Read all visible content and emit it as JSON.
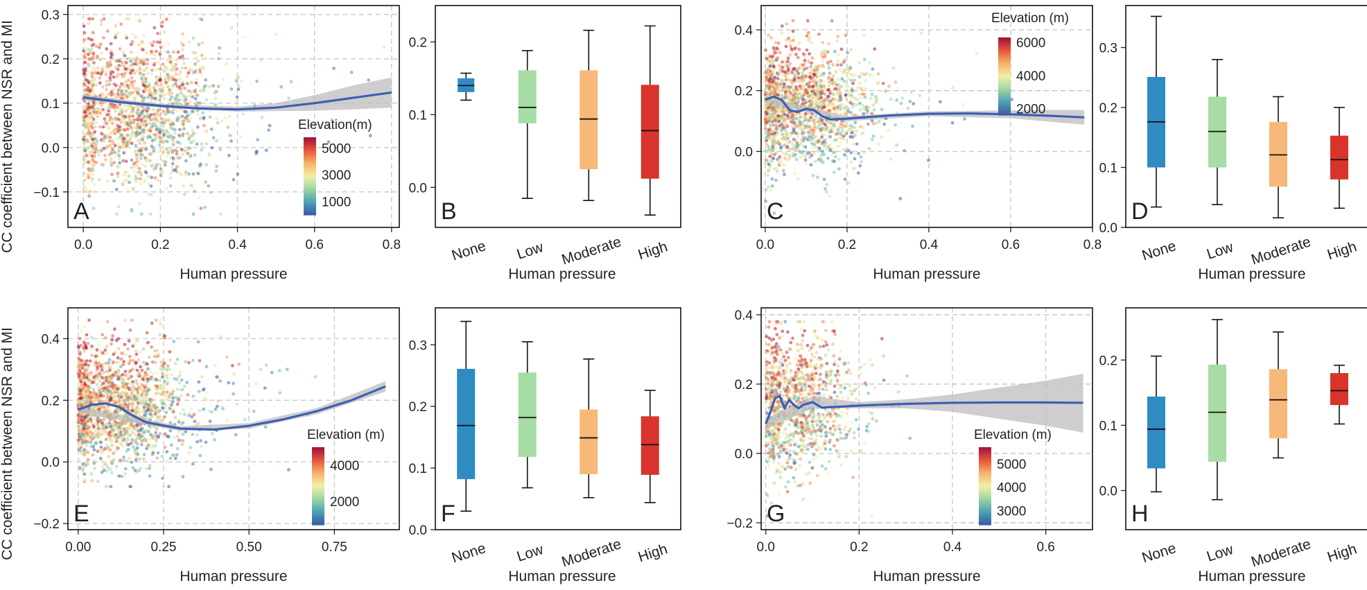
{
  "figure": {
    "ylabel_top": "CC coefficient between NSR and MI",
    "ylabel_bottom": "CC coefficient between NSR and MI"
  },
  "palette": {
    "elevation_ramp": [
      "#3b5ea8",
      "#4fa4b6",
      "#9fd6a2",
      "#f2f0a8",
      "#f6b46a",
      "#e9583a",
      "#a3153f"
    ],
    "smooth_line": "#3c5fb3",
    "ci_band": "#bdbdbd",
    "grid": "#c8c8c8",
    "box_colors": {
      "None": "#2f8cc2",
      "Low": "#a7dca5",
      "Moderate": "#f7b97a",
      "High": "#d8342b"
    }
  },
  "chart_data": [
    {
      "panel": "A",
      "type": "scatter",
      "xlabel": "Human pressure",
      "ylabel": "",
      "xlim": [
        -0.04,
        0.82
      ],
      "ylim": [
        -0.18,
        0.32
      ],
      "xticks": [
        0.0,
        0.2,
        0.4,
        0.6,
        0.8
      ],
      "yticks": [
        -0.1,
        0.0,
        0.1,
        0.2,
        0.3
      ],
      "xtick_labels": [
        "0.0",
        "0.2",
        "0.4",
        "0.6",
        "0.8"
      ],
      "ytick_labels": [
        "−0.1",
        "0.0",
        "0.1",
        "0.2",
        "0.3"
      ],
      "grid": true,
      "smooth": {
        "x": [
          0.0,
          0.1,
          0.2,
          0.3,
          0.4,
          0.5,
          0.6,
          0.7,
          0.8
        ],
        "y": [
          0.113,
          0.102,
          0.094,
          0.088,
          0.086,
          0.09,
          0.1,
          0.112,
          0.124
        ]
      },
      "ci": {
        "x": [
          0.0,
          0.2,
          0.4,
          0.5,
          0.6,
          0.7,
          0.8
        ],
        "lower": [
          0.107,
          0.09,
          0.081,
          0.082,
          0.083,
          0.086,
          0.09
        ],
        "upper": [
          0.119,
          0.098,
          0.092,
          0.1,
          0.118,
          0.14,
          0.158
        ]
      },
      "points": {
        "n": 1600,
        "x_center": 0.16,
        "x_spread": 0.09,
        "y_center": 0.08,
        "y_spread": 0.085,
        "y_min": -0.15,
        "y_max": 0.29,
        "x_max": 0.78
      },
      "colorbar": {
        "title": "Elevation(m)",
        "tick_labels": [
          "5000",
          "3000",
          "1000"
        ],
        "range": [
          0,
          5800
        ],
        "tick_values": [
          5000,
          3000,
          1000
        ]
      }
    },
    {
      "panel": "B",
      "type": "box",
      "xlabel": "Human pressure",
      "ylabel": "",
      "ylim": [
        -0.055,
        0.25
      ],
      "yticks": [
        0.0,
        0.1,
        0.2
      ],
      "ytick_labels": [
        "0.0",
        "0.1",
        "0.2"
      ],
      "categories": [
        "None",
        "Low",
        "Moderate",
        "High"
      ],
      "boxes": [
        {
          "min": 0.12,
          "q1": 0.131,
          "median": 0.14,
          "q3": 0.15,
          "max": 0.157
        },
        {
          "min": -0.015,
          "q1": 0.088,
          "median": 0.11,
          "q3": 0.161,
          "max": 0.188
        },
        {
          "min": -0.018,
          "q1": 0.025,
          "median": 0.094,
          "q3": 0.161,
          "max": 0.216
        },
        {
          "min": -0.038,
          "q1": 0.012,
          "median": 0.078,
          "q3": 0.141,
          "max": 0.222
        }
      ]
    },
    {
      "panel": "C",
      "type": "scatter",
      "xlabel": "Human pressure",
      "ylabel": "",
      "xlim": [
        -0.01,
        0.8
      ],
      "ylim": [
        -0.25,
        0.48
      ],
      "xticks": [
        0.0,
        0.2,
        0.4,
        0.6,
        0.8
      ],
      "yticks": [
        0.0,
        0.2,
        0.4
      ],
      "xtick_labels": [
        "0.0",
        "0.2",
        "0.4",
        "0.6",
        "0.8"
      ],
      "ytick_labels": [
        "0.0",
        "0.2",
        "0.4"
      ],
      "grid": true,
      "smooth": {
        "x": [
          0.0,
          0.02,
          0.04,
          0.06,
          0.08,
          0.1,
          0.12,
          0.14,
          0.16,
          0.2,
          0.3,
          0.4,
          0.5,
          0.6,
          0.7,
          0.78
        ],
        "y": [
          0.17,
          0.18,
          0.17,
          0.135,
          0.13,
          0.14,
          0.135,
          0.115,
          0.105,
          0.108,
          0.118,
          0.124,
          0.125,
          0.122,
          0.117,
          0.112
        ]
      },
      "ci": {
        "x": [
          0.0,
          0.2,
          0.4,
          0.6,
          0.7,
          0.78
        ],
        "lower": [
          0.16,
          0.1,
          0.116,
          0.109,
          0.097,
          0.088
        ],
        "upper": [
          0.18,
          0.116,
          0.132,
          0.135,
          0.137,
          0.136
        ]
      },
      "points": {
        "n": 1600,
        "x_center": 0.1,
        "x_spread": 0.08,
        "y_center": 0.15,
        "y_spread": 0.1,
        "y_min": -0.22,
        "y_max": 0.43,
        "x_max": 0.7
      },
      "colorbar": {
        "title": "Elevation (m)",
        "tick_labels": [
          "6000",
          "4000",
          "2000"
        ],
        "range": [
          1600,
          6300
        ],
        "tick_values": [
          6000,
          4000,
          2000
        ]
      }
    },
    {
      "panel": "D",
      "type": "box",
      "xlabel": "Human pressure",
      "ylabel": "",
      "ylim": [
        0.0,
        0.37
      ],
      "yticks": [
        0.0,
        0.1,
        0.2,
        0.3
      ],
      "ytick_labels": [
        "0.0",
        "0.1",
        "0.2",
        "0.3"
      ],
      "categories": [
        "None",
        "Low",
        "Moderate",
        "High"
      ],
      "boxes": [
        {
          "min": 0.034,
          "q1": 0.1,
          "median": 0.176,
          "q3": 0.251,
          "max": 0.352
        },
        {
          "min": 0.038,
          "q1": 0.1,
          "median": 0.16,
          "q3": 0.218,
          "max": 0.28
        },
        {
          "min": 0.016,
          "q1": 0.068,
          "median": 0.121,
          "q3": 0.176,
          "max": 0.218
        },
        {
          "min": 0.032,
          "q1": 0.08,
          "median": 0.113,
          "q3": 0.153,
          "max": 0.2
        }
      ]
    },
    {
      "panel": "E",
      "type": "scatter",
      "xlabel": "Human pressure",
      "ylabel": "",
      "xlim": [
        -0.03,
        0.94
      ],
      "ylim": [
        -0.22,
        0.5
      ],
      "xticks": [
        0.0,
        0.25,
        0.5,
        0.75
      ],
      "yticks": [
        -0.2,
        0.0,
        0.2,
        0.4
      ],
      "xtick_labels": [
        "0.00",
        "0.25",
        "0.50",
        "0.75"
      ],
      "ytick_labels": [
        "−0.2",
        "0.0",
        "0.2",
        "0.4"
      ],
      "grid": true,
      "smooth": {
        "x": [
          0.0,
          0.04,
          0.08,
          0.12,
          0.16,
          0.2,
          0.3,
          0.4,
          0.5,
          0.6,
          0.7,
          0.8,
          0.9
        ],
        "y": [
          0.17,
          0.185,
          0.19,
          0.178,
          0.15,
          0.128,
          0.108,
          0.105,
          0.117,
          0.138,
          0.165,
          0.2,
          0.245
        ]
      },
      "ci": {
        "x": [
          0.0,
          0.3,
          0.5,
          0.7,
          0.9
        ],
        "lower": [
          0.16,
          0.1,
          0.108,
          0.155,
          0.228
        ],
        "upper": [
          0.18,
          0.116,
          0.126,
          0.175,
          0.262
        ]
      },
      "points": {
        "n": 1700,
        "x_center": 0.12,
        "x_spread": 0.1,
        "y_center": 0.18,
        "y_spread": 0.1,
        "y_min": -0.08,
        "y_max": 0.46,
        "x_max": 0.9
      },
      "colorbar": {
        "title": "Elevation (m)",
        "tick_labels": [
          "4000",
          "2000"
        ],
        "range": [
          700,
          5000
        ],
        "tick_values": [
          4000,
          2000
        ]
      }
    },
    {
      "panel": "F",
      "type": "box",
      "xlabel": "Human pressure",
      "ylabel": "",
      "ylim": [
        0.0,
        0.36
      ],
      "yticks": [
        0.0,
        0.1,
        0.2,
        0.3
      ],
      "ytick_labels": [
        "0.0",
        "0.1",
        "0.2",
        "0.3"
      ],
      "categories": [
        "None",
        "Low",
        "Moderate",
        "High"
      ],
      "boxes": [
        {
          "min": 0.03,
          "q1": 0.082,
          "median": 0.169,
          "q3": 0.261,
          "max": 0.338
        },
        {
          "min": 0.068,
          "q1": 0.118,
          "median": 0.182,
          "q3": 0.255,
          "max": 0.305
        },
        {
          "min": 0.052,
          "q1": 0.09,
          "median": 0.149,
          "q3": 0.195,
          "max": 0.277
        },
        {
          "min": 0.044,
          "q1": 0.089,
          "median": 0.138,
          "q3": 0.184,
          "max": 0.226
        }
      ]
    },
    {
      "panel": "G",
      "type": "scatter",
      "xlabel": "Human pressure",
      "ylabel": "",
      "xlim": [
        -0.01,
        0.7
      ],
      "ylim": [
        -0.22,
        0.42
      ],
      "xticks": [
        0.0,
        0.2,
        0.4,
        0.6
      ],
      "yticks": [
        -0.2,
        0.0,
        0.2,
        0.4
      ],
      "xtick_labels": [
        "0.0",
        "0.2",
        "0.4",
        "0.6"
      ],
      "ytick_labels": [
        "−0.2",
        "0.0",
        "0.2",
        "0.4"
      ],
      "grid": true,
      "smooth": {
        "x": [
          0.0,
          0.01,
          0.02,
          0.03,
          0.04,
          0.05,
          0.06,
          0.07,
          0.08,
          0.1,
          0.12,
          0.2,
          0.3,
          0.4,
          0.5,
          0.6,
          0.68
        ],
        "y": [
          0.085,
          0.12,
          0.16,
          0.165,
          0.13,
          0.155,
          0.14,
          0.13,
          0.14,
          0.148,
          0.132,
          0.138,
          0.143,
          0.146,
          0.147,
          0.147,
          0.146
        ]
      },
      "ci": {
        "x": [
          0.0,
          0.1,
          0.2,
          0.3,
          0.4,
          0.5,
          0.6,
          0.68
        ],
        "lower": [
          0.07,
          0.13,
          0.13,
          0.13,
          0.12,
          0.1,
          0.08,
          0.06
        ],
        "upper": [
          0.1,
          0.165,
          0.148,
          0.156,
          0.17,
          0.19,
          0.21,
          0.23
        ]
      },
      "points": {
        "n": 1100,
        "x_center": 0.07,
        "x_spread": 0.06,
        "y_center": 0.14,
        "y_spread": 0.1,
        "y_min": -0.18,
        "y_max": 0.38,
        "x_max": 0.62
      },
      "colorbar": {
        "title": "Elevation (m)",
        "tick_labels": [
          "5000",
          "4000",
          "3000"
        ],
        "range": [
          2400,
          5700
        ],
        "tick_values": [
          5000,
          4000,
          3000
        ]
      }
    },
    {
      "panel": "H",
      "type": "box",
      "xlabel": "Human pressure",
      "ylabel": "",
      "ylim": [
        -0.06,
        0.28
      ],
      "yticks": [
        0.0,
        0.1,
        0.2
      ],
      "ytick_labels": [
        "0.0",
        "0.1",
        "0.2"
      ],
      "categories": [
        "None",
        "Low",
        "Moderate",
        "High"
      ],
      "boxes": [
        {
          "min": -0.002,
          "q1": 0.034,
          "median": 0.094,
          "q3": 0.144,
          "max": 0.206
        },
        {
          "min": -0.014,
          "q1": 0.044,
          "median": 0.12,
          "q3": 0.193,
          "max": 0.262
        },
        {
          "min": 0.05,
          "q1": 0.08,
          "median": 0.139,
          "q3": 0.186,
          "max": 0.243
        },
        {
          "min": 0.102,
          "q1": 0.131,
          "median": 0.153,
          "q3": 0.18,
          "max": 0.192
        }
      ]
    }
  ]
}
